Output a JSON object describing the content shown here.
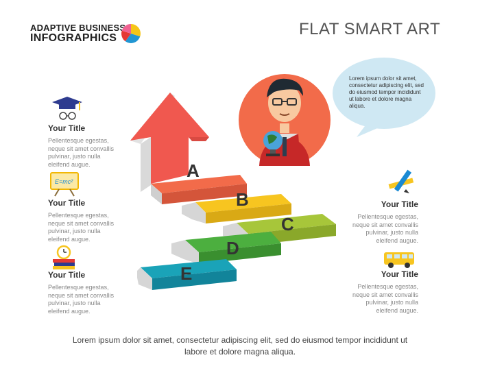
{
  "brand": {
    "line1": "ADAPTIVE BUSINESS",
    "line2": "INFOGRAPHICS"
  },
  "title": "FLAT SMART ART",
  "bubble": "Lorem ipsum dolor sit amet, consectetur adipiscing elit, sed do eiusmod tempor incididunt ut labore et dolore magna aliqua.",
  "steps": [
    "A",
    "B",
    "C",
    "D",
    "E"
  ],
  "colors": {
    "a": "#f26b4a",
    "b": "#f7c520",
    "c": "#a7c63a",
    "d": "#4caf3f",
    "e": "#1aa3b8",
    "arrow": "#f0584f"
  },
  "left_items": [
    {
      "icon": "graduation-cap-icon",
      "title": "Your Title",
      "desc": "Pellentesque egestas, neque sit amet convallis pulvinar, justo nulla eleifend augue."
    },
    {
      "icon": "email-board-icon",
      "title": "Your Title",
      "desc": "Pellentesque egestas, neque sit amet convallis pulvinar, justo nulla eleifend augue."
    },
    {
      "icon": "alarm-books-icon",
      "title": "Your Title",
      "desc": "Pellentesque egestas, neque sit amet convallis pulvinar, justo nulla eleifend augue."
    }
  ],
  "right_items": [
    {
      "icon": "pencil-ruler-icon",
      "title": "Your Title",
      "desc": "Pellentesque egestas, neque sit amet convallis pulvinar, justo nulla eleifend augue."
    },
    {
      "icon": "school-bus-icon",
      "title": "Your Title",
      "desc": "Pellentesque egestas, neque sit amet convallis pulvinar, justo nulla eleifend augue."
    }
  ],
  "footer": "Lorem ipsum dolor sit amet, consectetur adipiscing elit, sed do eiusmod tempor incididunt ut labore et dolore magna aliqua."
}
